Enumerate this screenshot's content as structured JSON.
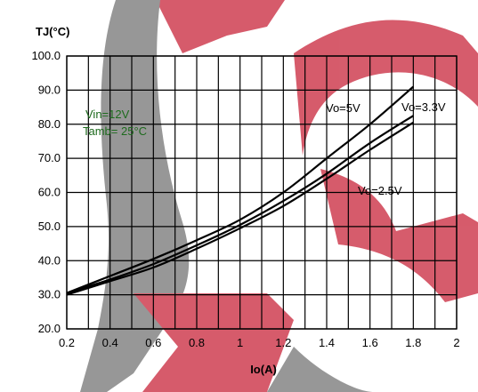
{
  "chart_data": {
    "type": "line",
    "xlabel": "Io(A)",
    "ylabel": "TJ(°C)",
    "xlim": [
      0.2,
      2.0
    ],
    "ylim": [
      20.0,
      100.0
    ],
    "x_ticks": [
      "0.2",
      "0.4",
      "0.6",
      "0.8",
      "1",
      "1.2",
      "1.4",
      "1.6",
      "1.8",
      "2"
    ],
    "y_ticks": [
      "20.0",
      "30.0",
      "40.0",
      "50.0",
      "60.0",
      "70.0",
      "80.0",
      "90.0",
      "100.0"
    ],
    "x_minor_step": 0.1,
    "grid": true,
    "conditions": [
      "Vin=12V",
      "Tamb= 25°C"
    ],
    "colors": {
      "line": "#000000",
      "grid": "#000000",
      "conditions_text": "#1e6b1e",
      "watermark_red": "#d24a5c",
      "watermark_gray": "#8c8c8c"
    },
    "series": [
      {
        "name": "Vo=5V",
        "x": [
          0.2,
          0.4,
          0.6,
          0.8,
          1.0,
          1.2,
          1.4,
          1.6,
          1.8
        ],
        "y": [
          30.5,
          35.5,
          40.5,
          46.0,
          52.0,
          60.0,
          70.0,
          80.0,
          91.0
        ]
      },
      {
        "name": "Vo=3.3V",
        "x": [
          0.2,
          0.4,
          0.6,
          0.8,
          1.0,
          1.2,
          1.4,
          1.6,
          1.8
        ],
        "y": [
          30.5,
          34.5,
          39.0,
          44.5,
          50.5,
          57.5,
          65.5,
          74.5,
          82.5
        ]
      },
      {
        "name": "Vo=2.5V",
        "x": [
          0.2,
          0.4,
          0.6,
          0.8,
          1.0,
          1.2,
          1.4,
          1.6,
          1.8
        ],
        "y": [
          30.0,
          34.0,
          38.0,
          43.5,
          49.5,
          56.0,
          64.0,
          72.5,
          80.5
        ]
      }
    ]
  }
}
